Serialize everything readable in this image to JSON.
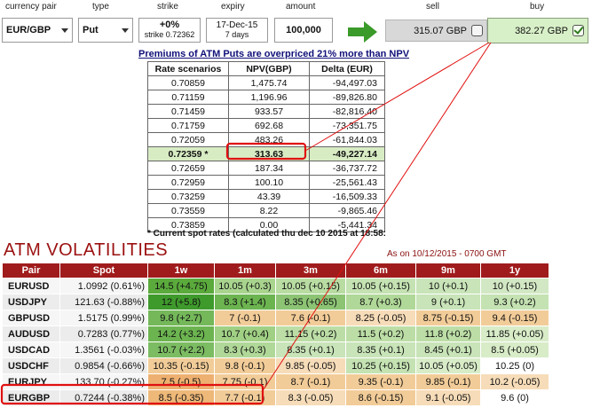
{
  "controls": {
    "currency_pair": {
      "label": "currency pair",
      "value": "EUR/GBP"
    },
    "type": {
      "label": "type",
      "value": "Put"
    },
    "strike": {
      "label": "strike",
      "line1": "+0%",
      "line2": "strike 0.72362"
    },
    "expiry": {
      "label": "expiry",
      "line1": "17-Dec-15",
      "line2": "7 days"
    },
    "amount": {
      "label": "amount",
      "value": "100,000"
    },
    "sell": {
      "label": "sell",
      "value": "315.07 GBP"
    },
    "buy": {
      "label": "buy",
      "value": "382.27 GBP"
    }
  },
  "scenarios": {
    "title": "Premiums of ATM Puts are overpriced 21% more than NPV",
    "headers": [
      "Rate scenarios",
      "NPV(GBP)",
      "Delta (EUR)"
    ],
    "rows": [
      [
        "0.70859",
        "1,475.74",
        "-94,497.03"
      ],
      [
        "0.71159",
        "1,196.96",
        "-89,826.80"
      ],
      [
        "0.71459",
        "933.57",
        "-82,816.40"
      ],
      [
        "0.71759",
        "692.68",
        "-73,351.75"
      ],
      [
        "0.72059",
        "483.26",
        "-61,844.03"
      ],
      [
        "0.72359 *",
        "313.63",
        "-49,227.14"
      ],
      [
        "0.72659",
        "187.34",
        "-36,737.72"
      ],
      [
        "0.72959",
        "100.10",
        "-25,561.43"
      ],
      [
        "0.73259",
        "43.39",
        "-16,509.33"
      ],
      [
        "0.73559",
        "8.22",
        "-9,865.46"
      ],
      [
        "0.73859",
        "0.00",
        "-5,441.34"
      ]
    ],
    "atm_row_index": 5,
    "footnote": "* Current spot rates (calculated thu dec 10 2015 at 18:58:"
  },
  "volatilities": {
    "title": "ATM VOLATILITIES",
    "as_of": "As on 10/12/2015 - 0700 GMT",
    "headers": [
      "Pair",
      "Spot",
      "1w",
      "1m",
      "3m",
      "6m",
      "9m",
      "1y"
    ],
    "rows": [
      {
        "pair": "EURUSD",
        "spot": "1.0992 (0.61%)",
        "vals": [
          "14.5 (+4.75)",
          "10.05 (+0.3)",
          "10.05 (+0.15)",
          "10.05 (+0.15)",
          "10 (+0.1)",
          "10 (+0.15)"
        ],
        "colors": [
          "#5aaa3c",
          "#a8d48e",
          "#b8dca2",
          "#c4e2b2",
          "#c8e4b8",
          "#d2e8c4"
        ]
      },
      {
        "pair": "USDJPY",
        "spot": "121.63 (-0.88%)",
        "vals": [
          "12 (+5.8)",
          "8.3 (+1.4)",
          "8.35 (+0.65)",
          "8.7 (+0.3)",
          "9 (+0.1)",
          "9.3 (+0.2)"
        ],
        "colors": [
          "#3f9a2c",
          "#6cb450",
          "#8cc474",
          "#b0d898",
          "#c8e4b8",
          "#c4e2b2"
        ]
      },
      {
        "pair": "GBPUSD",
        "spot": "1.5175 (0.99%)",
        "vals": [
          "9.8 (+2.7)",
          "7 (-0.1)",
          "7.6 (-0.1)",
          "8.25 (-0.05)",
          "8.75 (-0.15)",
          "9.4 (-0.15)"
        ],
        "colors": [
          "#74b85a",
          "#f2cc98",
          "#f2cc98",
          "#f6dcb8",
          "#f2cc98",
          "#f2cc98"
        ]
      },
      {
        "pair": "AUDUSD",
        "spot": "0.7283 (0.77%)",
        "vals": [
          "14.2 (+3.2)",
          "10.7 (+0.4)",
          "11.15 (+0.2)",
          "11.5 (+0.2)",
          "11.8 (+0.2)",
          "11.85 (+0.05)"
        ],
        "colors": [
          "#6cb450",
          "#a0d084",
          "#bcdea6",
          "#bcdea6",
          "#bcdea6",
          "#d8ecc8"
        ]
      },
      {
        "pair": "USDCAD",
        "spot": "1.3561 (-0.03%)",
        "vals": [
          "10.7 (+2.2)",
          "8.3 (+0.3)",
          "8.35 (+0.1)",
          "8.35 (+0.1)",
          "8.45 (+0.1)",
          "8.5 (+0.05)"
        ],
        "colors": [
          "#7cbc62",
          "#b0d898",
          "#c8e4b8",
          "#c8e4b8",
          "#c8e4b8",
          "#d8ecc8"
        ]
      },
      {
        "pair": "USDCHF",
        "spot": "0.9854 (-0.66%)",
        "vals": [
          "10.35 (-0.15)",
          "9.8 (-0.1)",
          "9.85 (-0.05)",
          "10.25 (+0.15)",
          "10.05 (+0.05)",
          "10.25 (0)"
        ],
        "colors": [
          "#f2cc98",
          "#f2cc98",
          "#f6dcb8",
          "#c4e2b2",
          "#d8ecc8",
          "#ffffff"
        ]
      },
      {
        "pair": "EURJPY",
        "spot": "133.70 (-0.27%)",
        "vals": [
          "7.5 (-0.5)",
          "7.75 (-0.1)",
          "8.7 (-0.1)",
          "9.35 (-0.1)",
          "9.85 (-0.1)",
          "10.2 (-0.05)"
        ],
        "colors": [
          "#eeb070",
          "#f2cc98",
          "#f2cc98",
          "#f2cc98",
          "#f2cc98",
          "#f6dcb8"
        ]
      },
      {
        "pair": "EURGBP",
        "spot": "0.7244 (-0.38%)",
        "vals": [
          "8.5 (-0.35)",
          "7.7 (-0.1)",
          "8.3 (-0.05)",
          "8.6 (-0.15)",
          "9.1 (-0.05)",
          "9.6 (0)"
        ],
        "colors": [
          "#eeb878",
          "#f2cc98",
          "#f6dcb8",
          "#f2cc98",
          "#f6dcb8",
          "#ffffff"
        ]
      }
    ]
  },
  "colors": {
    "annotation_red": "#e01010",
    "atm_green": "#d8ecc4",
    "header_red": "#a01c1c",
    "title_red": "#9b1010",
    "arrow_green": "#3a9a2a"
  }
}
